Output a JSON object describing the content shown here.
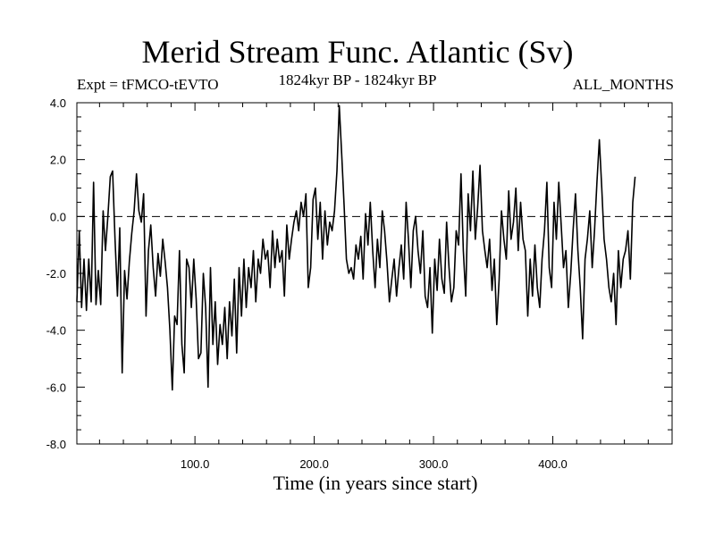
{
  "chart_data": {
    "type": "line",
    "title": "Merid Stream Func. Atlantic (Sv)",
    "subtitle_left": "Expt = tFMCO-tEVTO",
    "subtitle_center": "1824kyr BP - 1824kyr BP",
    "subtitle_right": "ALL_MONTHS",
    "xlabel": "Time (in years since start)",
    "ylabel": "",
    "xlim": [
      1,
      500
    ],
    "ylim": [
      -8.0,
      4.0
    ],
    "x_ticks": [
      100,
      200,
      300,
      400
    ],
    "x_tick_labels": [
      "100.0",
      "200.0",
      "300.0",
      "400.0"
    ],
    "y_ticks": [
      4,
      2,
      0,
      -2,
      -4,
      -6,
      -8
    ],
    "y_tick_labels": [
      "4.0",
      "2.0",
      "0.0",
      "-2.0",
      "-4.0",
      "-6.0",
      "-8.0"
    ],
    "zero_line": {
      "y": 0.0,
      "style": "dashed"
    },
    "series": [
      {
        "name": "Merid Stream Func. Atlantic",
        "x_start": 1,
        "x_step": 2,
        "values": [
          -3.0,
          -0.5,
          -3.2,
          -1.5,
          -3.3,
          -1.5,
          -3.0,
          1.2,
          -3.1,
          -1.9,
          -3.1,
          0.2,
          -1.2,
          0.0,
          1.4,
          1.6,
          -0.8,
          -2.8,
          -0.4,
          -5.5,
          -1.9,
          -2.9,
          -1.6,
          -0.6,
          0.2,
          1.5,
          0.2,
          -0.2,
          0.8,
          -3.5,
          -1.2,
          -0.3,
          -1.8,
          -2.8,
          -1.3,
          -2.1,
          -0.8,
          -1.6,
          -2.5,
          -4.0,
          -6.1,
          -3.5,
          -3.8,
          -1.2,
          -4.5,
          -5.5,
          -1.5,
          -1.8,
          -3.2,
          -1.5,
          -2.9,
          -5.0,
          -4.8,
          -2.0,
          -3.2,
          -6.0,
          -1.8,
          -4.5,
          -3.0,
          -5.2,
          -3.8,
          -4.5,
          -3.2,
          -5.0,
          -3.0,
          -4.2,
          -2.2,
          -4.8,
          -1.8,
          -3.5,
          -1.5,
          -3.2,
          -1.8,
          -2.5,
          -1.2,
          -3.0,
          -1.5,
          -2.0,
          -0.8,
          -1.5,
          -1.2,
          -2.5,
          -0.5,
          -1.8,
          -0.8,
          -1.6,
          -1.2,
          -2.8,
          -0.3,
          -1.5,
          -0.8,
          -0.2,
          0.2,
          -0.5,
          0.5,
          0.0,
          0.8,
          -2.5,
          -1.8,
          0.6,
          1.0,
          -0.8,
          0.5,
          -1.5,
          0.2,
          -1.0,
          -0.2,
          -0.5,
          0.2,
          1.6,
          3.9,
          2.2,
          0.4,
          -1.5,
          -2.0,
          -1.8,
          -2.2,
          -1.0,
          -1.5,
          -0.7,
          -2.2,
          0.1,
          -1.0,
          0.5,
          -1.2,
          -2.5,
          -0.8,
          -1.8,
          0.2,
          -0.5,
          -1.6,
          -3.0,
          -2.2,
          -1.5,
          -2.8,
          -1.8,
          -1.0,
          -2.2,
          0.5,
          -0.8,
          -2.5,
          -0.5,
          0.0,
          -1.2,
          -2.0,
          -0.5,
          -2.8,
          -3.2,
          -1.8,
          -4.1,
          -1.5,
          -2.6,
          -0.8,
          -2.2,
          -2.7,
          -0.2,
          -1.8,
          -3.0,
          -2.5,
          -0.5,
          -1.0,
          1.5,
          -1.2,
          -2.8,
          0.8,
          -0.5,
          1.6,
          -0.8,
          0.3,
          1.8,
          -0.5,
          -1.2,
          -1.8,
          -0.8,
          -2.6,
          -1.5,
          -3.8,
          -2.2,
          0.2,
          -0.8,
          -1.5,
          0.9,
          -0.8,
          -0.2,
          1.0,
          -1.2,
          0.5,
          -0.8,
          -1.2,
          -3.5,
          -1.5,
          -2.8,
          -1.0,
          -2.5,
          -3.2,
          -1.5,
          -0.5,
          1.2,
          -1.8,
          -2.5,
          0.5,
          -0.8,
          1.2,
          -0.3,
          -1.8,
          -1.2,
          -3.2,
          -2.0,
          -0.5,
          0.8,
          -1.2,
          -2.5,
          -4.3,
          -1.5,
          -0.8,
          0.2,
          -1.8,
          -0.5,
          1.2,
          2.7,
          1.0,
          -0.8,
          -1.5,
          -2.5,
          -3.0,
          -2.0,
          -3.8,
          -1.2,
          -2.5,
          -1.5,
          -1.2,
          -0.5,
          -2.2,
          0.5,
          1.4
        ]
      }
    ]
  }
}
